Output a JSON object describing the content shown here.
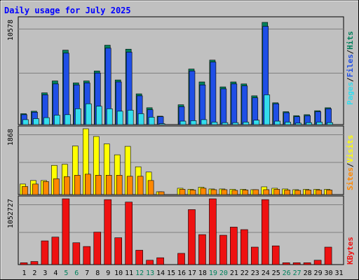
{
  "chart_data": [
    {
      "type": "bar",
      "title": "Daily usage for July 2025",
      "panel": "top",
      "categories": [
        "1",
        "2",
        "3",
        "4",
        "5",
        "6",
        "7",
        "8",
        "9",
        "10",
        "11",
        "12",
        "13",
        "14",
        "15",
        "16",
        "17",
        "18",
        "19",
        "20",
        "21",
        "22",
        "23",
        "24",
        "25",
        "26",
        "27",
        "28",
        "29",
        "30",
        "31"
      ],
      "ymax_label": "10578",
      "ylim": [
        0,
        10578
      ],
      "series": [
        {
          "name": "Hits",
          "color": "#00805c",
          "values": [
            1100,
            1350,
            3200,
            4400,
            7500,
            4200,
            4400,
            5400,
            8000,
            4500,
            7600,
            3100,
            1700,
            850,
            0,
            2000,
            5600,
            4300,
            6500,
            3800,
            4300,
            4100,
            2900,
            10300,
            2200,
            1300,
            900,
            1000,
            1400,
            1700,
            0
          ]
        },
        {
          "name": "Files",
          "color": "#1f4fe6",
          "values": [
            1000,
            1250,
            3000,
            4100,
            7200,
            4000,
            4200,
            5200,
            7700,
            4300,
            7300,
            2900,
            1500,
            800,
            0,
            1800,
            5400,
            4000,
            6300,
            3600,
            4100,
            3900,
            2700,
            9900,
            2100,
            1200,
            800,
            900,
            1300,
            1600,
            0
          ]
        },
        {
          "name": "Pages",
          "color": "#33ddee",
          "values": [
            500,
            600,
            700,
            950,
            1000,
            1600,
            2100,
            1850,
            1600,
            1350,
            1450,
            1100,
            750,
            100,
            0,
            350,
            400,
            500,
            250,
            200,
            200,
            250,
            450,
            3000,
            350,
            250,
            150,
            200,
            250,
            200,
            0
          ]
        }
      ],
      "legend": [
        "Pages",
        "Files",
        "Hits"
      ]
    },
    {
      "type": "bar",
      "panel": "middle",
      "categories": [
        "1",
        "2",
        "3",
        "4",
        "5",
        "6",
        "7",
        "8",
        "9",
        "10",
        "11",
        "12",
        "13",
        "14",
        "15",
        "16",
        "17",
        "18",
        "19",
        "20",
        "21",
        "22",
        "23",
        "24",
        "25",
        "26",
        "27",
        "28",
        "29",
        "30",
        "31"
      ],
      "ymax_label": "1868",
      "ylim": [
        0,
        1868
      ],
      "series": [
        {
          "name": "Visits",
          "color": "#ffff00",
          "values": [
            300,
            400,
            400,
            830,
            860,
            1380,
            1868,
            1650,
            1440,
            1130,
            1370,
            790,
            640,
            80,
            0,
            180,
            150,
            210,
            160,
            160,
            150,
            150,
            140,
            220,
            180,
            160,
            140,
            150,
            150,
            150,
            0
          ]
        },
        {
          "name": "Sites",
          "color": "#ff8800",
          "values": [
            230,
            300,
            370,
            450,
            510,
            550,
            580,
            550,
            550,
            550,
            520,
            520,
            400,
            80,
            0,
            150,
            130,
            180,
            140,
            140,
            120,
            130,
            140,
            140,
            150,
            130,
            120,
            130,
            130,
            130,
            0
          ]
        }
      ],
      "legend": [
        "Sites",
        "Visits"
      ]
    },
    {
      "type": "bar",
      "panel": "bottom",
      "categories": [
        "1",
        "2",
        "3",
        "4",
        "5",
        "6",
        "7",
        "8",
        "9",
        "10",
        "11",
        "12",
        "13",
        "14",
        "15",
        "16",
        "17",
        "18",
        "19",
        "20",
        "21",
        "22",
        "23",
        "24",
        "25",
        "26",
        "27",
        "28",
        "29",
        "30",
        "31"
      ],
      "ymax_label": "1052727",
      "ylim": [
        0,
        1052727
      ],
      "series": [
        {
          "name": "KBytes",
          "color": "#ee1111",
          "values": [
            30000,
            50000,
            380000,
            440000,
            1052727,
            350000,
            290000,
            520000,
            1040000,
            430000,
            1000000,
            230000,
            70000,
            110000,
            0,
            180000,
            880000,
            480000,
            1052727,
            470000,
            600000,
            560000,
            280000,
            1040000,
            300000,
            30000,
            30000,
            30000,
            70000,
            280000,
            0
          ]
        }
      ],
      "legend": [
        "KBytes"
      ]
    }
  ],
  "weekend_days": [
    5,
    6,
    12,
    13,
    19,
    20,
    26,
    27
  ],
  "colors": {
    "background": "#c0c0c0",
    "frame": "#c0c0c0",
    "title": "#0000ff",
    "axis_label": "#000000",
    "weekday_label": "#000000",
    "weekend_label": "#00805c",
    "grid": "#808080"
  }
}
